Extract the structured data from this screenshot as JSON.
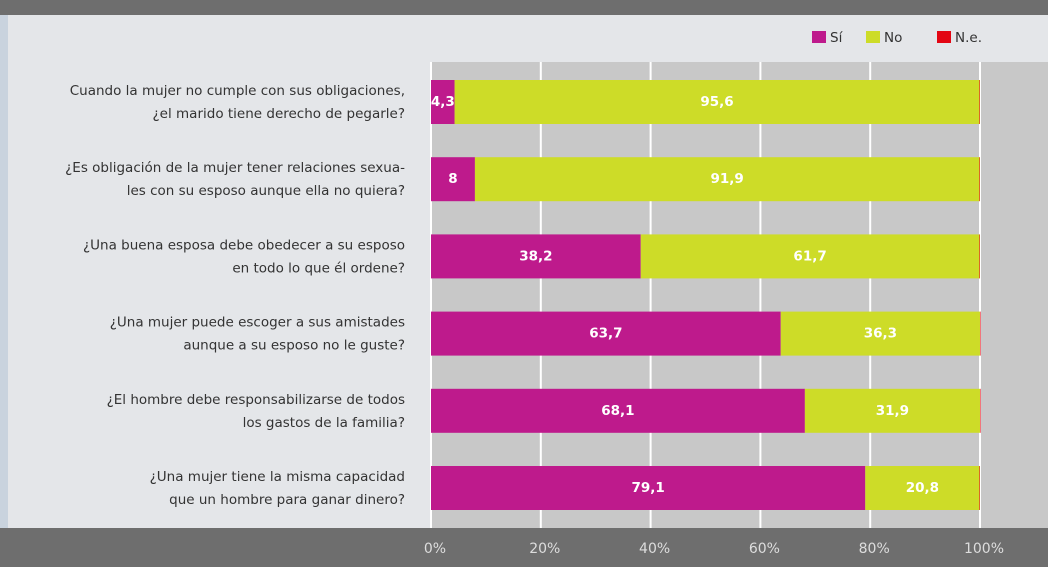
{
  "chart_data": {
    "type": "stacked_bar_horizontal",
    "categories": [
      [
        "Cuando la mujer no cumple con sus obligaciones,",
        "¿el marido tiene derecho de pegarle?"
      ],
      [
        "¿Es obligación de la mujer tener relaciones sexua-",
        "les  con su esposo aunque ella no quiera?"
      ],
      [
        "¿Una buena esposa debe obedecer a su esposo",
        "en  todo lo que él ordene?"
      ],
      [
        "¿Una mujer puede escoger a sus amistades",
        "aunque a su esposo no le guste?"
      ],
      [
        "¿El hombre debe responsabilizarse de todos",
        "los gastos de la familia?"
      ],
      [
        "¿Una mujer tiene la misma capacidad",
        "que un hombre para ganar dinero?"
      ]
    ],
    "series": [
      {
        "name": "Sí",
        "color": "#be1a8c",
        "values": [
          4.3,
          8,
          38.2,
          63.7,
          68.1,
          79.1
        ],
        "value_labels": [
          "4,3",
          "8",
          "38,2",
          "63,7",
          "68,1",
          "79,1"
        ]
      },
      {
        "name": "No",
        "color": "#cddc28",
        "values": [
          95.6,
          91.9,
          61.7,
          36.3,
          31.9,
          20.8
        ],
        "value_labels": [
          "95,6",
          "91,9",
          "61,7",
          "36,3",
          "31,9",
          "20,8"
        ]
      },
      {
        "name": "N.e.",
        "color": "#e30613",
        "values": [
          0.1,
          0.1,
          0.1,
          0.1,
          0.1,
          0.1
        ]
      }
    ],
    "xlim": [
      0,
      100
    ],
    "xticks": [
      {
        "value": 0,
        "label": "0%"
      },
      {
        "value": 20,
        "label": "20%"
      },
      {
        "value": 40,
        "label": "40%"
      },
      {
        "value": 60,
        "label": "60%"
      },
      {
        "value": 80,
        "label": "80%"
      },
      {
        "value": 100,
        "label": "100%"
      }
    ],
    "grid": true,
    "legend": "top-right"
  }
}
